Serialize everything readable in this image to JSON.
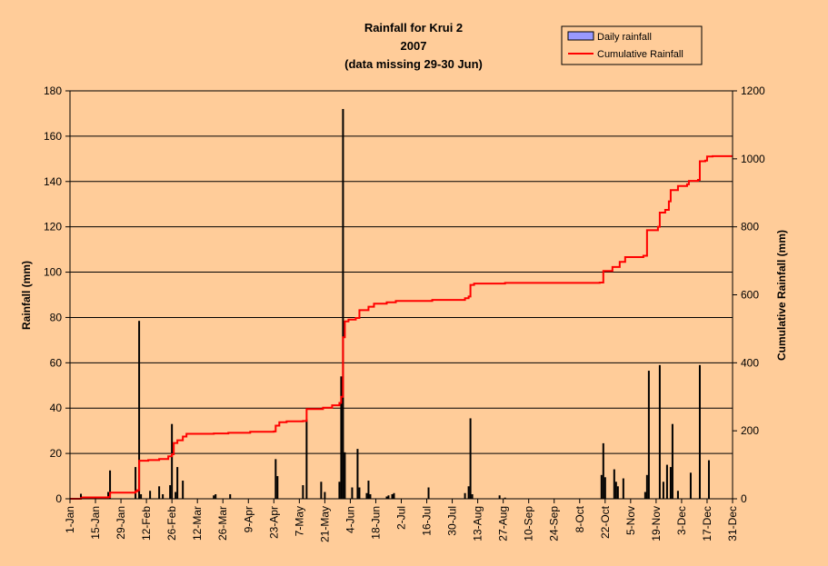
{
  "chart_data": {
    "type": "bar+line",
    "title": "Rainfall for Krui 2",
    "subtitle_year": "2007",
    "subtitle_note": "(data missing 29-30 Jun)",
    "ylabel_left": "Rainfall (mm)",
    "ylabel_right": "Cumulative Rainfall (mm)",
    "ylim_left": [
      0,
      180
    ],
    "ylim_right": [
      0,
      1200
    ],
    "yticks_left": [
      "0",
      "20",
      "40",
      "60",
      "80",
      "100",
      "120",
      "140",
      "160",
      "180"
    ],
    "yticks_right": [
      "0",
      "200",
      "400",
      "600",
      "800",
      "1000",
      "1200"
    ],
    "xlim_days": [
      1,
      365
    ],
    "xticks": [
      {
        "day": 1,
        "label": "1-Jan"
      },
      {
        "day": 15,
        "label": "15-Jan"
      },
      {
        "day": 29,
        "label": "29-Jan"
      },
      {
        "day": 43,
        "label": "12-Feb"
      },
      {
        "day": 57,
        "label": "26-Feb"
      },
      {
        "day": 71,
        "label": "12-Mar"
      },
      {
        "day": 85,
        "label": "26-Mar"
      },
      {
        "day": 99,
        "label": "9-Apr"
      },
      {
        "day": 113,
        "label": "23-Apr"
      },
      {
        "day": 127,
        "label": "7-May"
      },
      {
        "day": 141,
        "label": "21-May"
      },
      {
        "day": 155,
        "label": "4-Jun"
      },
      {
        "day": 169,
        "label": "18-Jun"
      },
      {
        "day": 183,
        "label": "2-Jul"
      },
      {
        "day": 197,
        "label": "16-Jul"
      },
      {
        "day": 211,
        "label": "30-Jul"
      },
      {
        "day": 225,
        "label": "13-Aug"
      },
      {
        "day": 239,
        "label": "27-Aug"
      },
      {
        "day": 253,
        "label": "10-Sep"
      },
      {
        "day": 267,
        "label": "24-Sep"
      },
      {
        "day": 281,
        "label": "8-Oct"
      },
      {
        "day": 295,
        "label": "22-Oct"
      },
      {
        "day": 309,
        "label": "5-Nov"
      },
      {
        "day": 323,
        "label": "19-Nov"
      },
      {
        "day": 337,
        "label": "3-Dec"
      },
      {
        "day": 351,
        "label": "17-Dec"
      },
      {
        "day": 365,
        "label": "31-Dec"
      }
    ],
    "grid": true,
    "legend_position": "top-right",
    "series": [
      {
        "name": "Daily rainfall",
        "kind": "bar",
        "axis": "left",
        "color": "#000000",
        "legend_swatch_color": "#9999ff",
        "points": [
          [
            7,
            2.2
          ],
          [
            22,
            3
          ],
          [
            23,
            12.5
          ],
          [
            37,
            14
          ],
          [
            39,
            78.5
          ],
          [
            40,
            2
          ],
          [
            45,
            3.5
          ],
          [
            50,
            5.5
          ],
          [
            52,
            2
          ],
          [
            56,
            6
          ],
          [
            57,
            33
          ],
          [
            59,
            3
          ],
          [
            60,
            14
          ],
          [
            63,
            8
          ],
          [
            80,
            1.5
          ],
          [
            81,
            2
          ],
          [
            89,
            2
          ],
          [
            114,
            17.5
          ],
          [
            115,
            10
          ],
          [
            129,
            6
          ],
          [
            131,
            35
          ],
          [
            139,
            7.5
          ],
          [
            141,
            3
          ],
          [
            149,
            7.5
          ],
          [
            150,
            54
          ],
          [
            151,
            172
          ],
          [
            152,
            20.5
          ],
          [
            156,
            5
          ],
          [
            159,
            22
          ],
          [
            160,
            5
          ],
          [
            164,
            2.5
          ],
          [
            165,
            8
          ],
          [
            166,
            2
          ],
          [
            175,
            1
          ],
          [
            176,
            1.5
          ],
          [
            178,
            2
          ],
          [
            179,
            2.5
          ],
          [
            198,
            5
          ],
          [
            218,
            2.5
          ],
          [
            220,
            5.5
          ],
          [
            221,
            35.5
          ],
          [
            222,
            2
          ],
          [
            237,
            1.5
          ],
          [
            240,
            0.5
          ],
          [
            293,
            10.5
          ],
          [
            294,
            24.5
          ],
          [
            295,
            9.5
          ],
          [
            300,
            13
          ],
          [
            301,
            7.5
          ],
          [
            302,
            5.5
          ],
          [
            305,
            9
          ],
          [
            317,
            3
          ],
          [
            318,
            10.5
          ],
          [
            319,
            56.5
          ],
          [
            325,
            59
          ],
          [
            327,
            7.5
          ],
          [
            329,
            15
          ],
          [
            331,
            14
          ],
          [
            332,
            33
          ],
          [
            335,
            3.5
          ],
          [
            342,
            11.5
          ],
          [
            347,
            59
          ],
          [
            352,
            17
          ]
        ]
      },
      {
        "name": "Cumulative Rainfall",
        "kind": "line",
        "axis": "right",
        "color": "#ff0000",
        "points": [
          [
            1,
            0
          ],
          [
            7,
            2
          ],
          [
            8,
            4
          ],
          [
            22,
            5
          ],
          [
            23,
            18
          ],
          [
            37,
            22
          ],
          [
            38,
            25
          ],
          [
            39,
            112
          ],
          [
            44,
            114
          ],
          [
            50,
            117
          ],
          [
            55,
            125
          ],
          [
            57,
            131
          ],
          [
            58,
            164
          ],
          [
            60,
            172
          ],
          [
            63,
            183
          ],
          [
            65,
            191
          ],
          [
            80,
            192
          ],
          [
            88,
            194
          ],
          [
            100,
            197
          ],
          [
            113,
            198
          ],
          [
            114,
            215
          ],
          [
            116,
            225
          ],
          [
            120,
            228
          ],
          [
            129,
            229
          ],
          [
            131,
            264
          ],
          [
            140,
            268
          ],
          [
            145,
            275
          ],
          [
            149,
            282
          ],
          [
            150,
            300
          ],
          [
            151,
            475
          ],
          [
            152,
            522
          ],
          [
            154,
            527
          ],
          [
            158,
            532
          ],
          [
            160,
            555
          ],
          [
            165,
            565
          ],
          [
            168,
            574
          ],
          [
            175,
            578
          ],
          [
            180,
            582
          ],
          [
            200,
            585
          ],
          [
            218,
            590
          ],
          [
            220,
            595
          ],
          [
            221,
            629
          ],
          [
            223,
            633
          ],
          [
            240,
            635
          ],
          [
            270,
            635
          ],
          [
            292,
            636
          ],
          [
            294,
            670
          ],
          [
            299,
            682
          ],
          [
            303,
            697
          ],
          [
            306,
            711
          ],
          [
            316,
            715
          ],
          [
            318,
            790
          ],
          [
            324,
            800
          ],
          [
            325,
            842
          ],
          [
            328,
            850
          ],
          [
            330,
            875
          ],
          [
            331,
            908
          ],
          [
            335,
            920
          ],
          [
            340,
            925
          ],
          [
            341,
            935
          ],
          [
            346,
            938
          ],
          [
            347,
            993
          ],
          [
            350,
            995
          ],
          [
            351,
            1007
          ],
          [
            354,
            1008
          ]
        ]
      }
    ]
  }
}
